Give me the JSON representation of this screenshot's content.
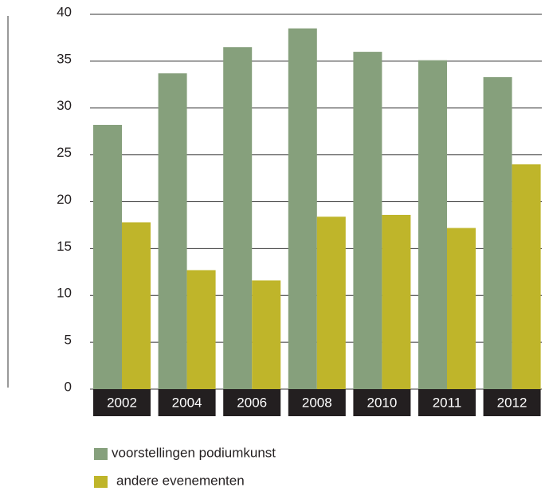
{
  "chart_data": {
    "type": "bar",
    "categories": [
      "2002",
      "2004",
      "2006",
      "2008",
      "2010",
      "2011",
      "2012"
    ],
    "series": [
      {
        "name": "voorstellingen podiumkunst",
        "color": "#86a07c",
        "values": [
          28.2,
          33.7,
          36.5,
          38.5,
          36.0,
          35.1,
          33.3
        ]
      },
      {
        "name": "andere evenementen",
        "color": "#bfb52a",
        "values": [
          17.8,
          12.7,
          11.6,
          18.4,
          18.6,
          17.2,
          24.0
        ]
      }
    ],
    "ylim": [
      0,
      40
    ],
    "yticks": [
      0,
      5,
      10,
      15,
      20,
      25,
      30,
      35,
      40
    ],
    "grid": true,
    "legend": "bottom"
  }
}
